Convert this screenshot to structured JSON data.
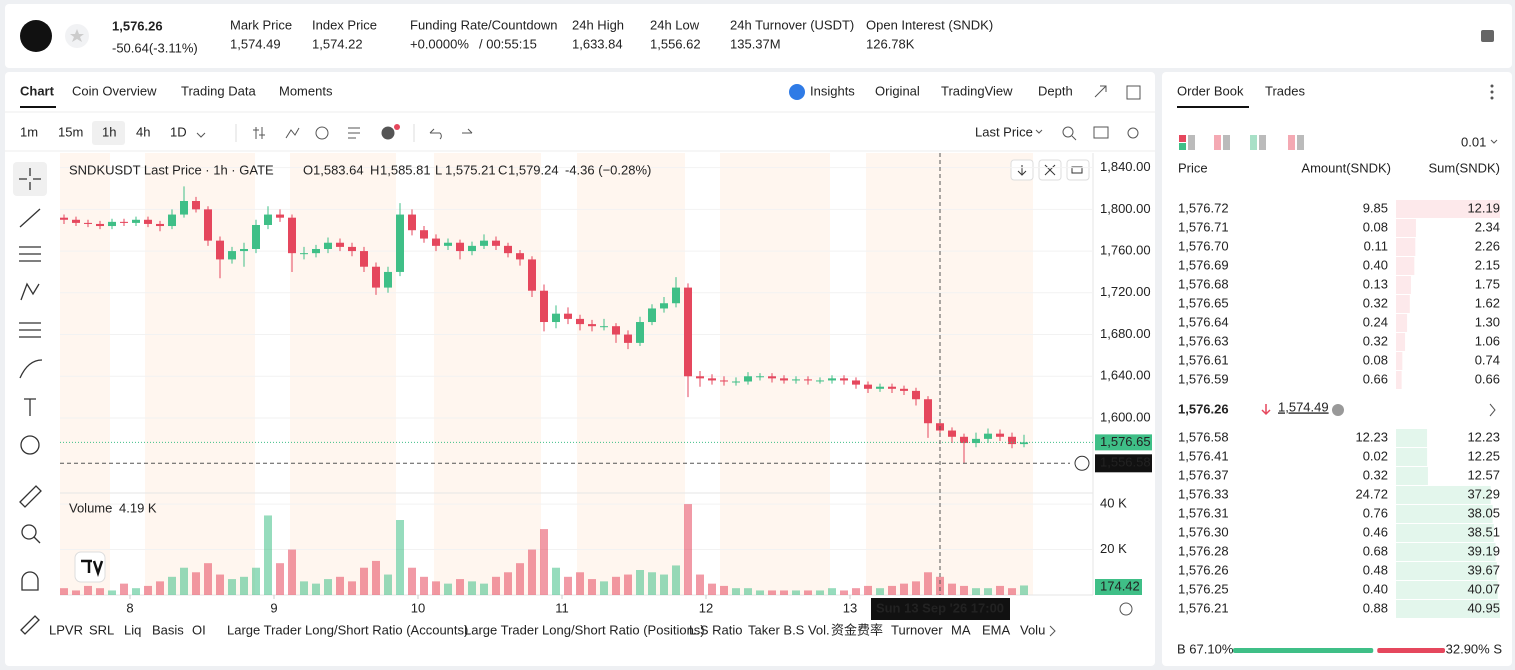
{
  "header": {
    "price": "1,576.26",
    "change": "-50.64(-3.11%)",
    "stats": [
      {
        "label": "Mark Price",
        "value": "1,574.49"
      },
      {
        "label": "Index Price",
        "value": "1,574.22"
      },
      {
        "label": "Funding Rate/Countdown",
        "value": "+0.0000%",
        "extra": "/ 00:55:15"
      },
      {
        "label": "24h High",
        "value": "1,633.84"
      },
      {
        "label": "24h Low",
        "value": "1,556.62"
      },
      {
        "label": "24h Turnover (USDT)",
        "value": "135.37M"
      },
      {
        "label": "Open Interest (SNDK)",
        "value": "126.78K"
      }
    ]
  },
  "tabs": [
    "Chart",
    "Coin Overview",
    "Trading Data",
    "Moments"
  ],
  "views": [
    "Insights",
    "Original",
    "TradingView",
    "Depth"
  ],
  "intervals": [
    "1m",
    "15m",
    "1h",
    "4h",
    "1D"
  ],
  "price_source": "Last Price",
  "chart_data": {
    "type": "candlestick",
    "title": "SNDKUSDT Last Price · 1h · GATE",
    "ohlc": [
      {
        "label": "O",
        "value": "1,583.64"
      },
      {
        "label": "H",
        "value": "1,585.81"
      },
      {
        "label": "L",
        "value": "1,575.21"
      },
      {
        "label": "C",
        "value": "1,579.24"
      }
    ],
    "change": "-4.36 (−0.28%)",
    "colors": {
      "up": "#3fbf87",
      "down": "#e5475d"
    },
    "candles": [
      [
        1792,
        1795,
        1786,
        1790
      ],
      [
        1790,
        1793,
        1784,
        1787
      ],
      [
        1787,
        1790,
        1783,
        1786
      ],
      [
        1786,
        1789,
        1781,
        1784
      ],
      [
        1784,
        1791,
        1781,
        1788
      ],
      [
        1788,
        1791,
        1784,
        1787
      ],
      [
        1787,
        1793,
        1784,
        1790
      ],
      [
        1790,
        1793,
        1783,
        1786
      ],
      [
        1786,
        1789,
        1779,
        1784
      ],
      [
        1784,
        1800,
        1781,
        1795
      ],
      [
        1795,
        1822,
        1792,
        1808
      ],
      [
        1808,
        1812,
        1797,
        1800
      ],
      [
        1800,
        1803,
        1765,
        1770
      ],
      [
        1770,
        1774,
        1734,
        1752
      ],
      [
        1752,
        1764,
        1748,
        1760
      ],
      [
        1760,
        1768,
        1745,
        1762
      ],
      [
        1762,
        1790,
        1758,
        1785
      ],
      [
        1785,
        1803,
        1781,
        1795
      ],
      [
        1795,
        1800,
        1788,
        1792
      ],
      [
        1792,
        1795,
        1740,
        1758
      ],
      [
        1758,
        1764,
        1752,
        1758
      ],
      [
        1758,
        1766,
        1754,
        1762
      ],
      [
        1762,
        1773,
        1758,
        1768
      ],
      [
        1768,
        1772,
        1760,
        1764
      ],
      [
        1764,
        1768,
        1755,
        1760
      ],
      [
        1760,
        1764,
        1740,
        1745
      ],
      [
        1745,
        1749,
        1718,
        1725
      ],
      [
        1725,
        1745,
        1720,
        1740
      ],
      [
        1740,
        1806,
        1736,
        1795
      ],
      [
        1795,
        1800,
        1775,
        1780
      ],
      [
        1780,
        1784,
        1768,
        1772
      ],
      [
        1772,
        1776,
        1760,
        1765
      ],
      [
        1765,
        1772,
        1761,
        1768
      ],
      [
        1768,
        1771,
        1752,
        1760
      ],
      [
        1760,
        1769,
        1756,
        1765
      ],
      [
        1765,
        1776,
        1762,
        1770
      ],
      [
        1770,
        1774,
        1761,
        1765
      ],
      [
        1765,
        1768,
        1754,
        1758
      ],
      [
        1758,
        1761,
        1746,
        1752
      ],
      [
        1752,
        1755,
        1716,
        1722
      ],
      [
        1722,
        1728,
        1683,
        1692
      ],
      [
        1692,
        1708,
        1686,
        1700
      ],
      [
        1700,
        1706,
        1690,
        1695
      ],
      [
        1695,
        1699,
        1684,
        1690
      ],
      [
        1690,
        1694,
        1683,
        1688
      ],
      [
        1688,
        1695,
        1684,
        1688
      ],
      [
        1688,
        1691,
        1672,
        1680
      ],
      [
        1680,
        1684,
        1666,
        1672
      ],
      [
        1672,
        1697,
        1669,
        1692
      ],
      [
        1692,
        1709,
        1689,
        1705
      ],
      [
        1705,
        1716,
        1701,
        1710
      ],
      [
        1710,
        1735,
        1706,
        1725
      ],
      [
        1725,
        1729,
        1620,
        1640
      ],
      [
        1640,
        1645,
        1630,
        1638
      ],
      [
        1638,
        1642,
        1632,
        1636
      ],
      [
        1636,
        1640,
        1631,
        1635
      ],
      [
        1635,
        1639,
        1631,
        1635
      ],
      [
        1635,
        1644,
        1632,
        1640
      ],
      [
        1640,
        1643,
        1636,
        1640
      ],
      [
        1640,
        1643,
        1634,
        1638
      ],
      [
        1638,
        1641,
        1633,
        1636
      ],
      [
        1636,
        1640,
        1633,
        1637
      ],
      [
        1637,
        1640,
        1632,
        1636
      ],
      [
        1636,
        1639,
        1633,
        1636
      ],
      [
        1636,
        1641,
        1633,
        1638
      ],
      [
        1638,
        1641,
        1632,
        1636
      ],
      [
        1636,
        1639,
        1628,
        1632
      ],
      [
        1632,
        1635,
        1624,
        1628
      ],
      [
        1628,
        1633,
        1625,
        1630
      ],
      [
        1630,
        1633,
        1624,
        1628
      ],
      [
        1628,
        1631,
        1622,
        1626
      ],
      [
        1626,
        1629,
        1612,
        1618
      ],
      [
        1618,
        1621,
        1581,
        1595
      ],
      [
        1595,
        1599,
        1582,
        1588
      ],
      [
        1588,
        1591,
        1576,
        1582
      ],
      [
        1582,
        1585,
        1557,
        1576
      ],
      [
        1576,
        1586,
        1572,
        1580
      ],
      [
        1580,
        1590,
        1576,
        1585
      ],
      [
        1585,
        1589,
        1578,
        1582
      ],
      [
        1582,
        1586,
        1571,
        1575
      ],
      [
        1575,
        1584,
        1572,
        1576.65
      ]
    ],
    "ylim": [
      1531,
      1854
    ],
    "yticks": [
      {
        "value": 1840,
        "label": "1,840.00"
      },
      {
        "value": 1800,
        "label": "1,800.00"
      },
      {
        "value": 1760,
        "label": "1,760.00"
      },
      {
        "value": 1720,
        "label": "1,720.00"
      },
      {
        "value": 1680,
        "label": "1,680.00"
      },
      {
        "value": 1640,
        "label": "1,640.00"
      },
      {
        "value": 1600,
        "label": "1,600.00"
      }
    ],
    "xticks": [
      {
        "value": 5.5,
        "label": "8"
      },
      {
        "value": 17.5,
        "label": "9"
      },
      {
        "value": 29.5,
        "label": "10"
      },
      {
        "value": 41.5,
        "label": "11"
      },
      {
        "value": 53.5,
        "label": "12"
      },
      {
        "value": 65.5,
        "label": "13"
      }
    ],
    "last_price_tag": {
      "value": 1576.65,
      "label": "1,576.65"
    },
    "crosshair_price": {
      "value": 1556.58,
      "label": "1,556.58"
    },
    "crosshair_time": {
      "value": 73,
      "label": "Sun 13 Sep '26   17:00"
    },
    "volume": {
      "title": "Volume",
      "current": "4.19 K",
      "tag": "174.42",
      "ylim": [
        0,
        44
      ],
      "yticks": [
        {
          "value": 40,
          "label": "40 K"
        },
        {
          "value": 20,
          "label": "20 K"
        }
      ],
      "values": [
        3,
        2,
        4,
        3,
        2,
        5,
        3,
        4,
        6,
        8,
        12,
        10,
        14,
        9,
        7,
        8,
        12,
        35,
        14,
        20,
        6,
        5,
        7,
        8,
        6,
        12,
        15,
        9,
        33,
        12,
        8,
        6,
        5,
        7,
        6,
        5,
        8,
        10,
        14,
        20,
        29,
        12,
        8,
        10,
        7,
        6,
        8,
        9,
        11,
        10,
        9,
        13,
        40,
        9,
        5,
        4,
        3,
        3,
        2,
        2,
        2,
        2,
        2,
        2,
        3,
        2,
        3,
        4,
        3,
        4,
        5,
        6,
        10,
        8,
        5,
        4,
        3,
        3,
        4,
        3,
        4.19
      ]
    }
  },
  "indicators": [
    "LPVR",
    "SRL",
    "Liq",
    "Basis",
    "OI",
    "Large Trader Long/Short Ratio (Accounts)",
    "Large Trader Long/Short Ratio (Positions)",
    "L.S Ratio",
    "Taker B.S Vol.",
    "资金费率",
    "Turnover",
    "MA",
    "EMA",
    "Volu"
  ],
  "order_book": {
    "tabs": [
      "Order Book",
      "Trades"
    ],
    "tick": "0.01",
    "headers": [
      "Price",
      "Amount(SNDK)",
      "Sum(SNDK)"
    ],
    "asks": [
      {
        "price": "1,576.72",
        "amount": "9.85",
        "sum": 12.19
      },
      {
        "price": "1,576.71",
        "amount": "0.08",
        "sum": 2.34
      },
      {
        "price": "1,576.70",
        "amount": "0.11",
        "sum": 2.26
      },
      {
        "price": "1,576.69",
        "amount": "0.40",
        "sum": 2.15
      },
      {
        "price": "1,576.68",
        "amount": "0.13",
        "sum": 1.75
      },
      {
        "price": "1,576.65",
        "amount": "0.32",
        "sum": 1.62
      },
      {
        "price": "1,576.64",
        "amount": "0.24",
        "sum": {
          "value": 1.3,
          "label": "1.30"
        }
      },
      {
        "price": "1,576.63",
        "amount": "0.32",
        "sum": 1.06
      },
      {
        "price": "1,576.61",
        "amount": "0.08",
        "sum": 0.74
      },
      {
        "price": "1,576.59",
        "amount": "0.66",
        "sum": 0.66
      }
    ],
    "mid_price": "1,576.26",
    "mark_price": "1,574.49",
    "bids": [
      {
        "price": "1,576.58",
        "amount": "12.23",
        "sum": 12.23
      },
      {
        "price": "1,576.41",
        "amount": "0.02",
        "sum": 12.25
      },
      {
        "price": "1,576.37",
        "amount": "0.32",
        "sum": 12.57
      },
      {
        "price": "1,576.33",
        "amount": "24.72",
        "sum": 37.29
      },
      {
        "price": "1,576.31",
        "amount": "0.76",
        "sum": 38.05
      },
      {
        "price": "1,576.30",
        "amount": "0.46",
        "sum": 38.51
      },
      {
        "price": "1,576.28",
        "amount": "0.68",
        "sum": 39.19
      },
      {
        "price": "1,576.26",
        "amount": "0.48",
        "sum": 39.67
      },
      {
        "price": "1,576.25",
        "amount": "0.40",
        "sum": 40.07
      },
      {
        "price": "1,576.21",
        "amount": "0.88",
        "sum": 40.95
      }
    ],
    "buy_ratio": {
      "value": 67.1,
      "label": "B 67.10%"
    },
    "sell_ratio": {
      "value": 32.9,
      "label": "32.90% S"
    }
  }
}
